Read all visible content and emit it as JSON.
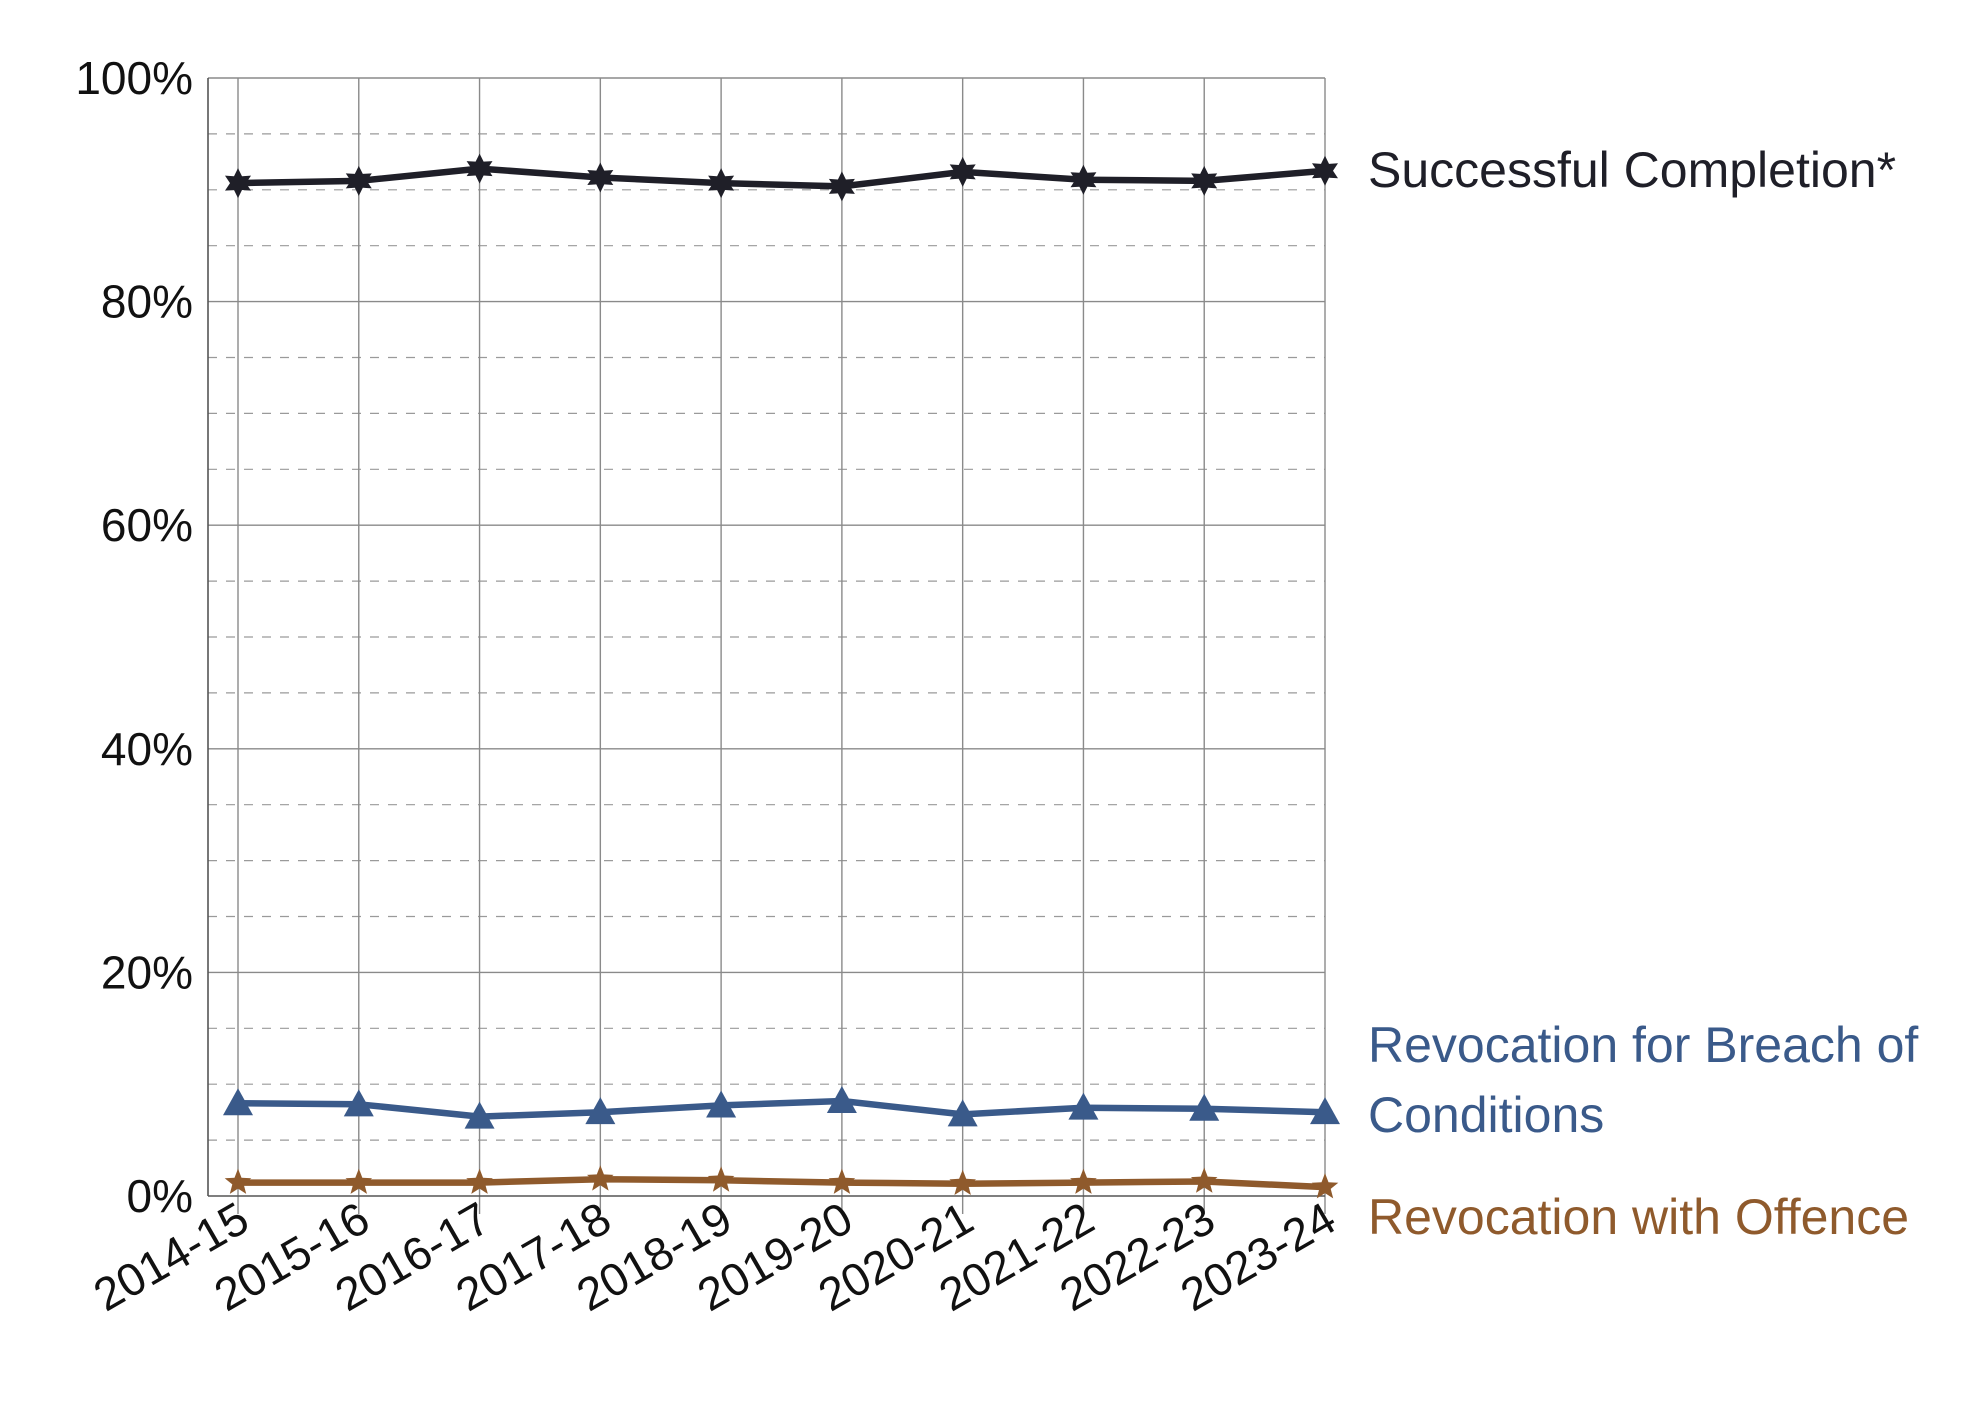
{
  "chart_data": {
    "type": "line",
    "title": "",
    "xlabel": "",
    "ylabel": "",
    "categories": [
      "2014-15",
      "2015-16",
      "2016-17",
      "2017-18",
      "2018-19",
      "2019-20",
      "2020-21",
      "2021-22",
      "2022-23",
      "2023-24"
    ],
    "ylim": [
      0,
      100
    ],
    "y_ticks": [
      "0%",
      "20%",
      "40%",
      "60%",
      "80%",
      "100%"
    ],
    "grid": {
      "major": true,
      "minor_dashed": true,
      "vertical": true
    },
    "legend_placement": "right-inline",
    "series": [
      {
        "name": "Successful Completion*",
        "color": "#1f1f28",
        "marker": "star-6",
        "values": [
          90.6,
          90.8,
          91.9,
          91.1,
          90.6,
          90.3,
          91.6,
          90.9,
          90.8,
          91.7
        ]
      },
      {
        "name_lines": [
          "Revocation for Breach of",
          "Conditions"
        ],
        "color": "#3a5a8a",
        "marker": "triangle",
        "values": [
          8.3,
          8.2,
          7.1,
          7.5,
          8.1,
          8.5,
          7.3,
          7.9,
          7.8,
          7.5
        ]
      },
      {
        "name": "Revocation with Offence",
        "color": "#8f5a2c",
        "marker": "star-5",
        "values": [
          1.2,
          1.2,
          1.2,
          1.5,
          1.4,
          1.2,
          1.1,
          1.2,
          1.3,
          0.8
        ]
      }
    ]
  }
}
